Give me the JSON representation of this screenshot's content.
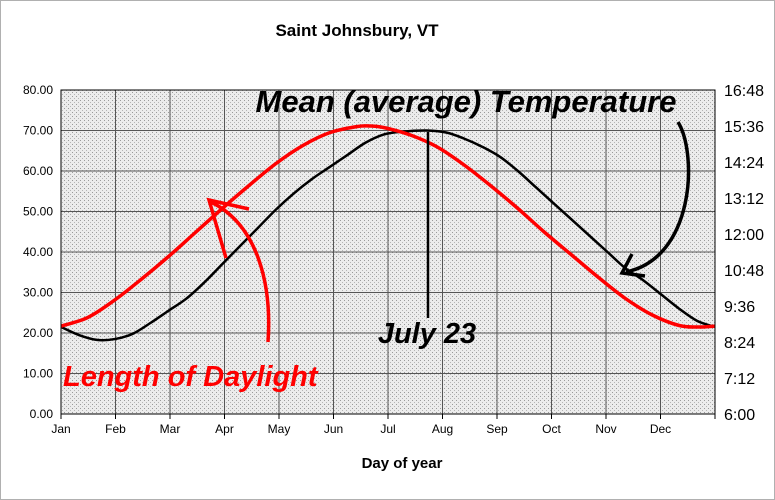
{
  "chart_data": {
    "type": "line",
    "title": "Saint Johnsbury, VT",
    "xlabel": "Day of year",
    "ylabel": "",
    "x_tick_labels": [
      "Jan",
      "Feb",
      "Mar",
      "Apr",
      "May",
      "Jun",
      "Jul",
      "Aug",
      "Sep",
      "Oct",
      "Nov",
      "Dec"
    ],
    "xlim": [
      0,
      365
    ],
    "ylim": [
      0,
      80
    ],
    "y_tick_labels": [
      "0.00",
      "10.00",
      "20.00",
      "30.00",
      "40.00",
      "50.00",
      "60.00",
      "70.00",
      "80.00"
    ],
    "y2_tick_labels": [
      "6:00",
      "7:12",
      "8:24",
      "9:36",
      "10:48",
      "12:00",
      "13:12",
      "14:24",
      "15:36",
      "16:48"
    ],
    "y2lim_hours": [
      6,
      16.8
    ],
    "grid": true,
    "background": "stippled light gray",
    "series": [
      {
        "name": "Mean (average) Temperature",
        "axis": "left",
        "color": "#000000",
        "x": [
          0,
          10,
          20,
          30,
          40,
          50,
          60,
          70,
          80,
          90,
          100,
          110,
          120,
          130,
          140,
          150,
          160,
          170,
          180,
          190,
          204,
          215,
          225,
          235,
          245,
          255,
          265,
          275,
          285,
          295,
          305,
          315,
          325,
          335,
          345,
          355,
          365
        ],
        "values": [
          21.5,
          19.5,
          18.3,
          18.5,
          19.8,
          22.5,
          25.5,
          28.5,
          32.5,
          37,
          41.5,
          46,
          50.5,
          54.5,
          58,
          61,
          64,
          67,
          69,
          69.7,
          70,
          69.5,
          68,
          66,
          63.5,
          60,
          56,
          52,
          48,
          44,
          40,
          36,
          33,
          29.5,
          26,
          23,
          21.5
        ]
      },
      {
        "name": "Length of Daylight",
        "axis": "right",
        "color": "#ff0000",
        "x": [
          0,
          15,
          30,
          45,
          60,
          75,
          90,
          105,
          120,
          135,
          150,
          165,
          172,
          180,
          195,
          210,
          225,
          240,
          255,
          270,
          285,
          300,
          315,
          330,
          345,
          356,
          365
        ],
        "values": [
          8.93,
          9.22,
          9.8,
          10.5,
          11.25,
          12.05,
          12.85,
          13.62,
          14.35,
          14.95,
          15.38,
          15.58,
          15.6,
          15.55,
          15.3,
          14.9,
          14.3,
          13.6,
          12.85,
          12.05,
          11.3,
          10.55,
          9.85,
          9.3,
          8.95,
          8.9,
          8.93
        ]
      }
    ],
    "annotations": [
      {
        "text": "Mean (average) Temperature",
        "color": "#000000"
      },
      {
        "text": "July 23",
        "color": "#000000"
      },
      {
        "text": "Length of Daylight",
        "color": "#ff0000"
      }
    ]
  }
}
